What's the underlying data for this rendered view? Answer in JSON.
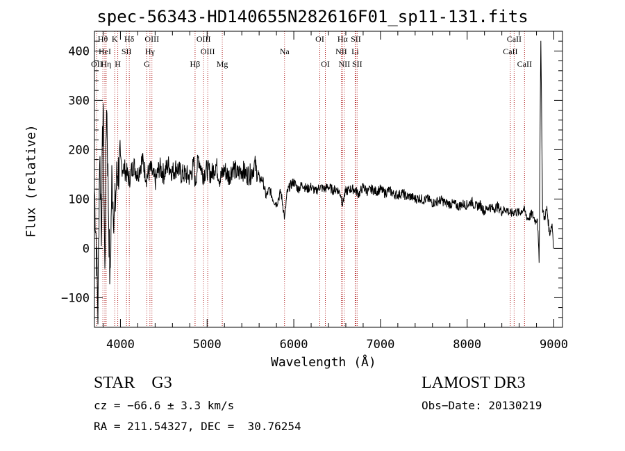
{
  "chart_data": {
    "type": "line",
    "title": "spec-56343-HD140655N282616F01_sp11-131.fits",
    "xlabel": "Wavelength (Å)",
    "ylabel": "Flux (relative)",
    "xlim": [
      3700,
      9100
    ],
    "ylim": [
      -160,
      440
    ],
    "x_ticks": [
      4000,
      5000,
      6000,
      7000,
      8000,
      9000
    ],
    "x_tick_labels": [
      "4000",
      "5000",
      "6000",
      "7000",
      "8000",
      "9000"
    ],
    "y_ticks": [
      -100,
      0,
      100,
      200,
      300,
      400
    ],
    "y_tick_labels": [
      "−100",
      "0",
      "100",
      "200",
      "300",
      "400"
    ],
    "grid": false,
    "series": [
      {
        "name": "flux",
        "x": [
          3700,
          3720,
          3740,
          3760,
          3780,
          3800,
          3820,
          3840,
          3860,
          3880,
          3900,
          3930,
          3960,
          4000,
          4050,
          4100,
          4150,
          4200,
          4250,
          4300,
          4350,
          4400,
          4450,
          4500,
          4550,
          4600,
          4650,
          4700,
          4750,
          4800,
          4850,
          4862,
          4900,
          4950,
          5000,
          5050,
          5100,
          5150,
          5200,
          5250,
          5300,
          5350,
          5400,
          5450,
          5500,
          5550,
          5600,
          5640,
          5680,
          5720,
          5760,
          5800,
          5850,
          5880,
          5895,
          5920,
          5950,
          6000,
          6050,
          6100,
          6150,
          6200,
          6250,
          6300,
          6350,
          6400,
          6450,
          6500,
          6540,
          6563,
          6580,
          6600,
          6650,
          6700,
          6750,
          6800,
          6850,
          6900,
          6950,
          7000,
          7050,
          7100,
          7150,
          7200,
          7250,
          7300,
          7350,
          7400,
          7450,
          7500,
          7550,
          7600,
          7650,
          7700,
          7750,
          7800,
          7850,
          7900,
          7950,
          8000,
          8050,
          8100,
          8150,
          8200,
          8250,
          8300,
          8350,
          8400,
          8450,
          8500,
          8550,
          8600,
          8650,
          8700,
          8750,
          8790,
          8810,
          8830,
          8850,
          8870,
          8890,
          8920,
          8950,
          8980,
          9000
        ],
        "y": [
          120,
          20,
          -130,
          200,
          40,
          300,
          -60,
          310,
          100,
          -80,
          140,
          60,
          150,
          170,
          160,
          140,
          170,
          150,
          180,
          145,
          160,
          135,
          165,
          150,
          170,
          155,
          165,
          150,
          150,
          145,
          170,
          130,
          185,
          150,
          160,
          150,
          170,
          140,
          160,
          145,
          165,
          150,
          160,
          150,
          150,
          170,
          140,
          140,
          105,
          120,
          100,
          90,
          115,
          80,
          60,
          110,
          125,
          135,
          120,
          130,
          120,
          125,
          115,
          125,
          120,
          125,
          118,
          120,
          110,
          90,
          105,
          115,
          120,
          120,
          110,
          125,
          115,
          120,
          115,
          120,
          112,
          118,
          110,
          108,
          112,
          105,
          105,
          100,
          102,
          98,
          100,
          92,
          95,
          98,
          92,
          90,
          90,
          85,
          90,
          88,
          95,
          85,
          88,
          75,
          85,
          80,
          85,
          75,
          80,
          70,
          75,
          72,
          80,
          60,
          70,
          55,
          65,
          -30,
          430,
          80,
          60,
          80,
          30,
          50,
          0
        ]
      }
    ],
    "lines": [
      {
        "name": "Hθ",
        "wavelength": 3797,
        "row": 1
      },
      {
        "name": "OII",
        "wavelength": 3727,
        "row": 3
      },
      {
        "name": "HeI",
        "wavelength": 3820,
        "row": 2
      },
      {
        "name": "Hη",
        "wavelength": 3835,
        "row": 3
      },
      {
        "name": "K",
        "wavelength": 3934,
        "row": 1
      },
      {
        "name": "SII",
        "wavelength": 4070,
        "row": 2
      },
      {
        "name": "H",
        "wavelength": 3969,
        "row": 3
      },
      {
        "name": "Hδ",
        "wavelength": 4102,
        "row": 1
      },
      {
        "name": "OIII",
        "wavelength": 4363,
        "row": 1
      },
      {
        "name": "Hγ",
        "wavelength": 4340,
        "row": 2
      },
      {
        "name": "G",
        "wavelength": 4305,
        "row": 3
      },
      {
        "name": "Hβ",
        "wavelength": 4861,
        "row": 3
      },
      {
        "name": "OIII",
        "wavelength": 4959,
        "row": 1
      },
      {
        "name": "OIII",
        "wavelength": 5007,
        "row": 2
      },
      {
        "name": "Mg",
        "wavelength": 5175,
        "row": 3
      },
      {
        "name": "Na",
        "wavelength": 5893,
        "row": 2
      },
      {
        "name": "OI",
        "wavelength": 6300,
        "row": 1
      },
      {
        "name": "OI",
        "wavelength": 6364,
        "row": 3
      },
      {
        "name": "Hα",
        "wavelength": 6563,
        "row": 1
      },
      {
        "name": "SII",
        "wavelength": 6716,
        "row": 1
      },
      {
        "name": "NII",
        "wavelength": 6548,
        "row": 2
      },
      {
        "name": "Li",
        "wavelength": 6708,
        "row": 2
      },
      {
        "name": "NII",
        "wavelength": 6583,
        "row": 3
      },
      {
        "name": "SII",
        "wavelength": 6731,
        "row": 3
      },
      {
        "name": "CaII",
        "wavelength": 8542,
        "row": 1
      },
      {
        "name": "CaII",
        "wavelength": 8498,
        "row": 2
      },
      {
        "name": "CaII",
        "wavelength": 8662,
        "row": 3
      }
    ]
  },
  "info": {
    "spectral_type": "STAR    G3",
    "survey": "LAMOST DR3",
    "cz": "cz = −66.6 ± 3.3 km/s",
    "obs_date": "Obs−Date: 20130219",
    "radec": "RA = 211.54327, DEC =  30.76254"
  },
  "colors": {
    "axis": "#000000",
    "spectrum": "#000000",
    "line_marker": "#b22222"
  }
}
